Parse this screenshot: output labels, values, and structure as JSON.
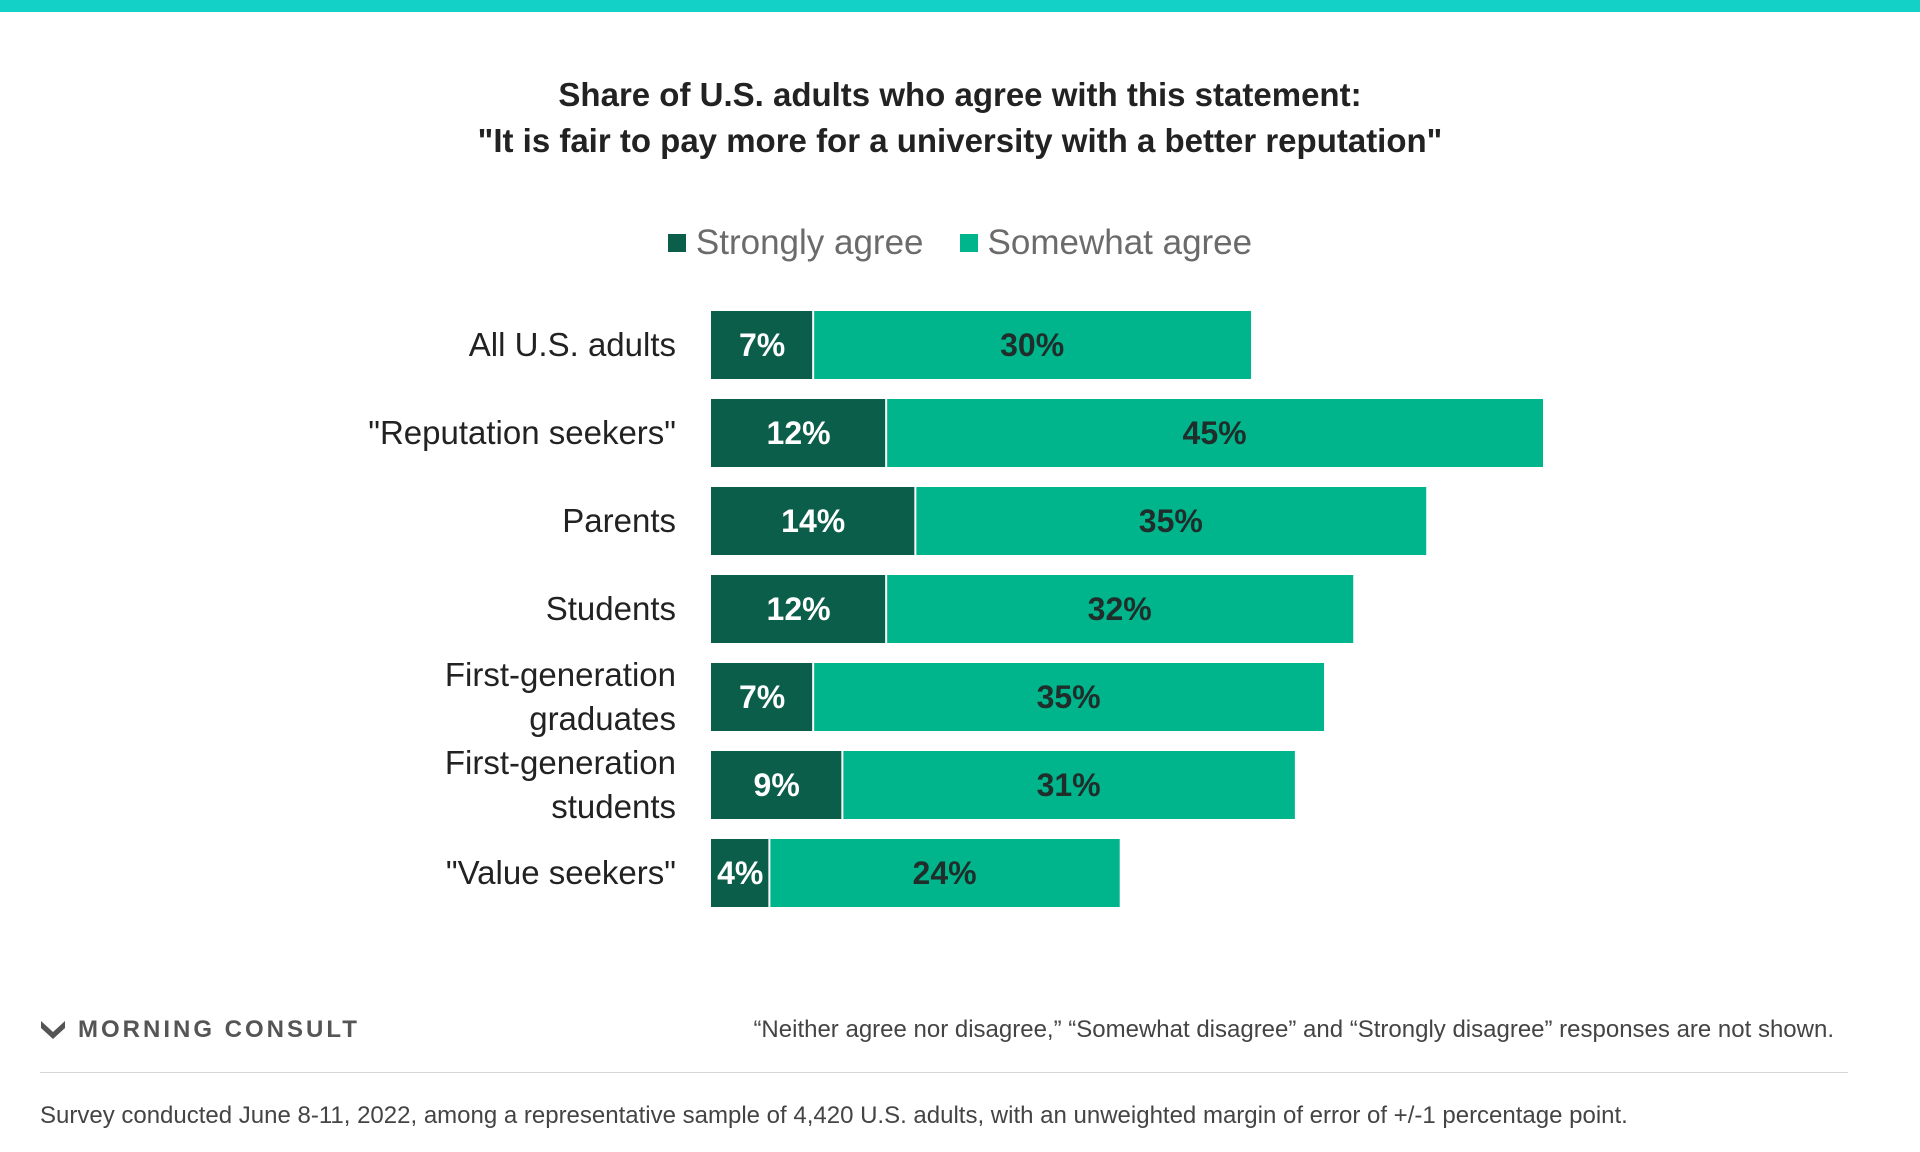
{
  "colors": {
    "accent_bar": "#14d1c8",
    "strongly_agree": "#0b5e4a",
    "somewhat_agree": "#00b48c",
    "label_light": "#ffffff",
    "label_dark": "#1f2e2a"
  },
  "brand": {
    "name": "MORNING CONSULT",
    "icon": "morning-consult-logo-icon"
  },
  "chart_data": {
    "type": "bar",
    "orientation": "horizontal",
    "stacked": true,
    "title": "Share of U.S. adults who agree with this statement:",
    "subtitle": "\"It is fair to pay more for a university with a better reputation\"",
    "categories": [
      [
        "All U.S. adults"
      ],
      [
        "\"Reputation seekers\""
      ],
      [
        "Parents"
      ],
      [
        "Students"
      ],
      [
        "First-generation",
        "graduates"
      ],
      [
        "First-generation",
        "students"
      ],
      [
        "\"Value seekers\""
      ]
    ],
    "series": [
      {
        "name": "Strongly agree",
        "values": [
          7,
          12,
          14,
          12,
          7,
          9,
          4
        ],
        "labels": [
          "7%",
          "12%",
          "14%",
          "12%",
          "7%",
          "9%",
          "4%"
        ]
      },
      {
        "name": "Somewhat agree",
        "values": [
          30,
          45,
          35,
          32,
          35,
          31,
          24
        ],
        "labels": [
          "30%",
          "45%",
          "35%",
          "32%",
          "35%",
          "31%",
          "24%"
        ]
      }
    ],
    "xlim": [
      0,
      57
    ],
    "legend_position": "top-center",
    "grid": false
  },
  "footer": {
    "note": "“Neither agree nor disagree,” “Somewhat disagree” and “Strongly disagree” responses are not shown.",
    "survey": "Survey conducted June 8-11, 2022, among a representative sample of 4,420 U.S. adults, with an unweighted margin of error of +/-1 percentage point."
  }
}
